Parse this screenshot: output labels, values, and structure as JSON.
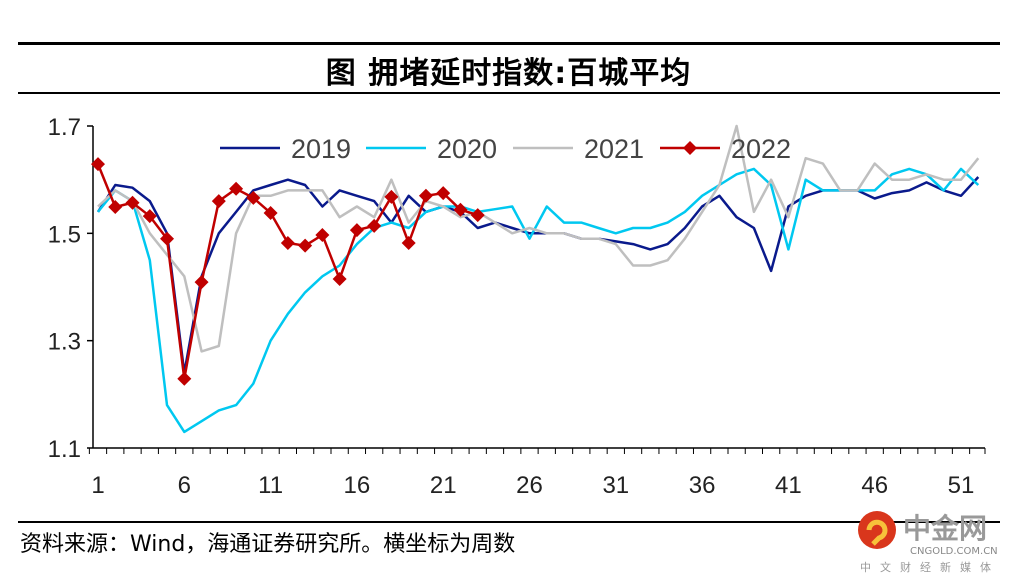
{
  "title": "图 拥堵延时指数:百城平均",
  "source": "资料来源：Wind，海通证券研究所。横坐标为周数",
  "watermark": {
    "name": "中金网",
    "url_text": "CNGOLD.COM.CN",
    "tagline": "中文财经新媒体"
  },
  "chart_data": {
    "type": "line",
    "title": "图 拥堵延时指数:百城平均",
    "xlabel": "",
    "ylabel": "",
    "xlim": [
      1,
      52
    ],
    "ylim": [
      1.1,
      1.7
    ],
    "x_ticks": [
      1,
      6,
      11,
      16,
      21,
      26,
      31,
      36,
      41,
      46,
      51
    ],
    "y_ticks": [
      1.1,
      1.3,
      1.5,
      1.7
    ],
    "grid": false,
    "legend": "top",
    "series": [
      {
        "name": "2019",
        "color": "#0a1a8c",
        "marker": "none",
        "values": [
          1.54,
          1.59,
          1.585,
          1.56,
          1.5,
          1.24,
          1.42,
          1.5,
          1.54,
          1.58,
          1.59,
          1.6,
          1.59,
          1.55,
          1.58,
          1.57,
          1.56,
          1.52,
          1.57,
          1.54,
          1.55,
          1.54,
          1.51,
          1.52,
          1.51,
          1.5,
          1.5,
          1.5,
          1.49,
          1.49,
          1.485,
          1.48,
          1.47,
          1.48,
          1.51,
          1.55,
          1.57,
          1.53,
          1.51,
          1.43,
          1.55,
          1.57,
          1.58,
          1.58,
          1.58,
          1.565,
          1.575,
          1.58,
          1.595,
          1.58,
          1.57,
          1.605
        ]
      },
      {
        "name": "2020",
        "color": "#00c8f0",
        "marker": "none",
        "values": [
          1.54,
          1.58,
          1.56,
          1.45,
          1.18,
          1.13,
          1.15,
          1.17,
          1.18,
          1.22,
          1.3,
          1.35,
          1.39,
          1.42,
          1.44,
          1.48,
          1.51,
          1.52,
          1.51,
          1.54,
          1.55,
          1.55,
          1.54,
          1.545,
          1.55,
          1.49,
          1.55,
          1.52,
          1.52,
          1.51,
          1.5,
          1.51,
          1.51,
          1.52,
          1.54,
          1.57,
          1.59,
          1.61,
          1.62,
          1.59,
          1.47,
          1.6,
          1.58,
          1.58,
          1.58,
          1.58,
          1.61,
          1.62,
          1.61,
          1.58,
          1.62,
          1.59
        ]
      },
      {
        "name": "2021",
        "color": "#bfbfbf",
        "marker": "none",
        "values": [
          1.55,
          1.58,
          1.56,
          1.5,
          1.46,
          1.42,
          1.28,
          1.29,
          1.5,
          1.57,
          1.57,
          1.58,
          1.58,
          1.58,
          1.53,
          1.55,
          1.53,
          1.6,
          1.52,
          1.56,
          1.55,
          1.53,
          1.54,
          1.52,
          1.5,
          1.51,
          1.5,
          1.5,
          1.49,
          1.49,
          1.48,
          1.44,
          1.44,
          1.45,
          1.49,
          1.54,
          1.59,
          1.7,
          1.54,
          1.6,
          1.53,
          1.64,
          1.63,
          1.58,
          1.58,
          1.63,
          1.6,
          1.6,
          1.61,
          1.6,
          1.6,
          1.64
        ]
      },
      {
        "name": "2022",
        "color": "#c00000",
        "marker": "diamond",
        "values": [
          1.629,
          1.549,
          1.557,
          1.532,
          1.49,
          1.229,
          1.409,
          1.56,
          1.583,
          1.566,
          1.538,
          1.482,
          1.477,
          1.497,
          1.415,
          1.506,
          1.514,
          1.568,
          1.482,
          1.57,
          1.575,
          1.544,
          1.534
        ]
      }
    ]
  }
}
